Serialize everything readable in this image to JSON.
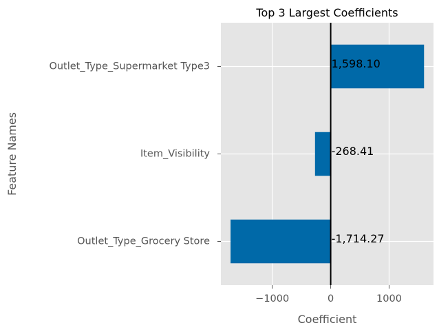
{
  "chart_data": {
    "type": "bar",
    "orientation": "horizontal",
    "title": "Top 3 Largest Coefficients",
    "xlabel": "Coefficient",
    "ylabel": "Feature Names",
    "categories": [
      "Outlet_Type_Supermarket Type3",
      "Item_Visibility",
      "Outlet_Type_Grocery Store"
    ],
    "values": [
      1598.1,
      -268.41,
      -1714.27
    ],
    "data_labels": [
      "1,598.10",
      "-268.41",
      "-1,714.27"
    ],
    "xlim": [
      -1880,
      1760
    ],
    "xticks": [
      -1000,
      0,
      1000
    ],
    "xtick_labels": [
      "−1000",
      "0",
      "1000"
    ],
    "grid": true,
    "zero_line": true,
    "bar_color": "#0069a8",
    "plot_bg": "#e5e5e5",
    "grid_color": "#ffffff",
    "zero_line_color": "#000000"
  }
}
